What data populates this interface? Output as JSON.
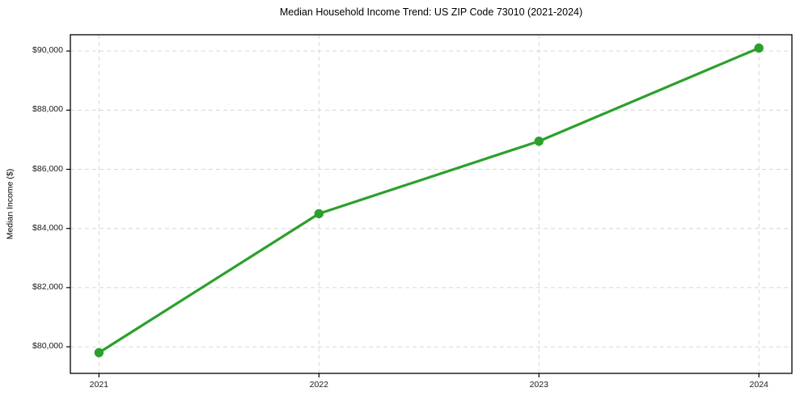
{
  "chart_data": {
    "type": "line",
    "title": "Median Household Income Trend: US ZIP Code 73010 (2021-2024)",
    "xlabel": "",
    "ylabel": "Median Income ($)",
    "categories": [
      "2021",
      "2022",
      "2023",
      "2024"
    ],
    "x": [
      2021,
      2022,
      2023,
      2024
    ],
    "series": [
      {
        "name": "Median Household Income",
        "values": [
          79800,
          84500,
          86950,
          90100
        ]
      }
    ],
    "yticks": [
      80000,
      82000,
      84000,
      86000,
      88000,
      90000
    ],
    "ytick_labels": [
      "$80,000",
      "$82,000",
      "$84,000",
      "$86,000",
      "$88,000",
      "$90,000"
    ],
    "ylim": [
      79100,
      90550
    ],
    "xlim": [
      2020.87,
      2024.15
    ],
    "grid": true,
    "legend": false,
    "colors": {
      "line": "#2ca02c",
      "marker": "#2ca02c",
      "grid": "#d6d6d6",
      "frame": "#000000",
      "tick": "#000000",
      "text": "#1a1a1a"
    }
  }
}
